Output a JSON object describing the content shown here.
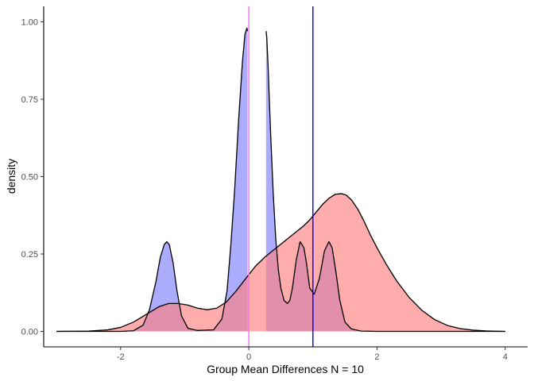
{
  "chart_data": {
    "type": "area",
    "title": "",
    "xlabel": "Group Mean Differences N = 10",
    "ylabel": "density",
    "xlim": [
      -3.2,
      4.35
    ],
    "ylim": [
      -0.05,
      1.05
    ],
    "x_ticks": [
      -2,
      0,
      2,
      4
    ],
    "x_tick_labels": [
      "-2",
      "0",
      "2",
      "4"
    ],
    "y_ticks": [
      0,
      0.25,
      0.5,
      0.75,
      1
    ],
    "y_tick_labels": [
      "0.00",
      "0.25",
      "0.50",
      "0.75",
      "1.00"
    ],
    "grid": false,
    "legend": "none",
    "series": [
      {
        "fill": "#8080ff",
        "x": [
          -3.0,
          -2.0,
          -1.8,
          -1.65,
          -1.55,
          -1.45,
          -1.38,
          -1.32,
          -1.28,
          -1.24,
          -1.18,
          -1.12,
          -1.05,
          -0.95,
          -0.8,
          -0.55,
          -0.42,
          -0.34,
          -0.28,
          -0.22,
          -0.16,
          -0.1,
          -0.06,
          -0.03,
          -0.02,
          null,
          0.27,
          0.28,
          0.3,
          0.34,
          0.38,
          0.42,
          0.46,
          0.5,
          0.55,
          0.6,
          0.64,
          0.68,
          0.7,
          0.74,
          0.8,
          0.86,
          0.9,
          0.95,
          1.02,
          1.1,
          1.18,
          1.25,
          1.3,
          1.36,
          1.42,
          1.5,
          1.6,
          1.75,
          2.0,
          4.0
        ],
        "y": [
          0.0,
          0.0,
          0.002,
          0.02,
          0.07,
          0.16,
          0.24,
          0.28,
          0.29,
          0.28,
          0.22,
          0.13,
          0.05,
          0.01,
          0.003,
          0.005,
          0.04,
          0.13,
          0.28,
          0.46,
          0.68,
          0.87,
          0.96,
          0.98,
          0.97,
          null,
          0.97,
          0.95,
          0.86,
          0.64,
          0.45,
          0.3,
          0.2,
          0.14,
          0.1,
          0.09,
          0.1,
          0.14,
          0.17,
          0.23,
          0.29,
          0.27,
          0.22,
          0.14,
          0.12,
          0.17,
          0.26,
          0.29,
          0.27,
          0.19,
          0.1,
          0.03,
          0.008,
          0.001,
          0.0,
          0.0
        ]
      },
      {
        "fill": "#ff8080",
        "x": [
          -3.0,
          -2.5,
          -2.2,
          -2.0,
          -1.8,
          -1.6,
          -1.4,
          -1.25,
          -1.1,
          -0.95,
          -0.8,
          -0.65,
          -0.5,
          -0.35,
          -0.2,
          -0.05,
          0.1,
          0.25,
          0.4,
          0.55,
          0.7,
          0.85,
          0.95,
          1.05,
          1.15,
          1.25,
          1.35,
          1.45,
          1.52,
          1.6,
          1.7,
          1.8,
          1.9,
          2.0,
          2.15,
          2.3,
          2.5,
          2.7,
          2.9,
          3.1,
          3.3,
          3.5,
          3.7,
          3.85,
          4.0
        ],
        "y": [
          0.0,
          0.001,
          0.005,
          0.013,
          0.03,
          0.055,
          0.08,
          0.09,
          0.09,
          0.085,
          0.075,
          0.07,
          0.075,
          0.095,
          0.13,
          0.17,
          0.21,
          0.24,
          0.265,
          0.29,
          0.315,
          0.34,
          0.36,
          0.385,
          0.41,
          0.43,
          0.443,
          0.445,
          0.44,
          0.425,
          0.395,
          0.355,
          0.31,
          0.27,
          0.215,
          0.165,
          0.11,
          0.068,
          0.038,
          0.019,
          0.009,
          0.004,
          0.0015,
          0.0005,
          0.0
        ]
      }
    ],
    "vlines": [
      {
        "x": 0.0,
        "color": "#ff66ff"
      },
      {
        "x": 1.0,
        "color": "#0000ff"
      }
    ]
  }
}
